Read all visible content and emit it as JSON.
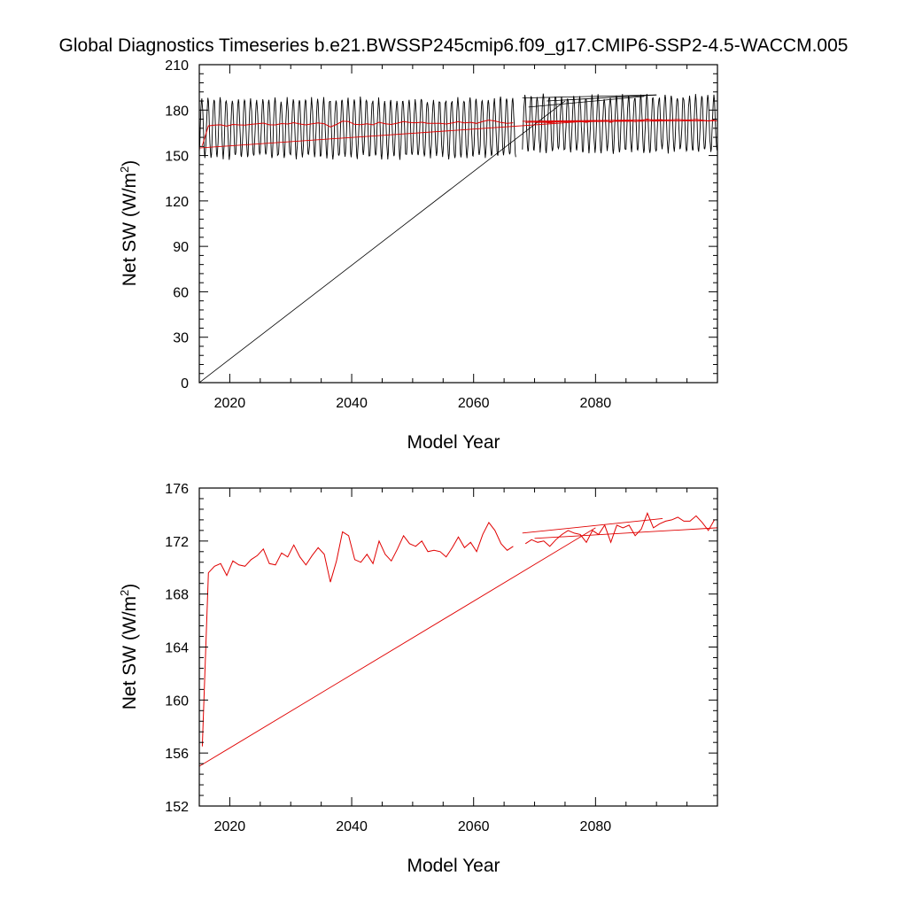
{
  "title": "Global Diagnostics Timeseries b.e21.BWSSP245cmip6.f09_g17.CMIP6-SSP2-4.5-WACCM.005",
  "colors": {
    "monthly": "#000000",
    "annual": "#e00000",
    "axis": "#000000",
    "background": "#ffffff"
  },
  "chart_data": [
    {
      "type": "line",
      "panel": "top",
      "xlabel": "Model Year",
      "ylabel_main": "Net SW (W/m",
      "ylabel_sup": "2",
      "ylabel_tail": ")",
      "xlim": [
        2015,
        2100
      ],
      "ylim": [
        0,
        210
      ],
      "xticks": [
        2020,
        2040,
        2060,
        2080
      ],
      "yticks": [
        0,
        30,
        60,
        90,
        120,
        150,
        180,
        210
      ],
      "grid": false,
      "series": [
        {
          "kind": "monthly",
          "color": "#000000",
          "segments": [
            {
              "years": [
                2015,
                2067
              ],
              "low": 149,
              "high": 187
            },
            {
              "years": [
                2068,
                2100
              ],
              "low": 153,
              "high": 189
            }
          ],
          "connectors": [
            {
              "from": [
                2015,
                0
              ],
              "to": [
                2075,
                186
              ]
            },
            {
              "from": [
                2068,
                188
              ],
              "to": [
                2090,
                190
              ]
            },
            {
              "from": [
                2069,
                182
              ],
              "to": [
                2088,
                189
              ]
            },
            {
              "from": [
                2072,
                186
              ],
              "to": [
                2090,
                190
              ]
            }
          ]
        },
        {
          "kind": "annual",
          "color": "#e00000",
          "segment1": {
            "x": [
              2015.5,
              2016.5,
              2017.5,
              2018.5,
              2019.5,
              2020.5,
              2021.5,
              2022.5,
              2023.5,
              2024.5,
              2025.5,
              2026.5,
              2027.5,
              2028.5,
              2029.5,
              2030.5,
              2031.5,
              2032.5,
              2033.5,
              2034.5,
              2035.5,
              2036.5,
              2037.5,
              2038.5,
              2039.5,
              2040.5,
              2041.5,
              2042.5,
              2043.5,
              2044.5,
              2045.5,
              2046.5,
              2047.5,
              2048.5,
              2049.5,
              2050.5,
              2051.5,
              2052.5,
              2053.5,
              2054.5,
              2055.5,
              2056.5,
              2057.5,
              2058.5,
              2059.5,
              2060.5,
              2061.5,
              2062.5,
              2063.5,
              2064.5,
              2065.5,
              2066.5
            ],
            "y": [
              156.5,
              169.6,
              170.1,
              170.3,
              169.4,
              170.5,
              170.2,
              170.1,
              170.6,
              170.9,
              171.4,
              170.3,
              170.2,
              171.1,
              170.8,
              171.7,
              170.8,
              170.2,
              170.9,
              171.5,
              171.0,
              168.9,
              170.5,
              172.7,
              172.4,
              170.6,
              170.4,
              171.0,
              170.3,
              172.0,
              171.0,
              170.5,
              171.4,
              172.4,
              171.8,
              171.6,
              172.0,
              171.2,
              171.3,
              171.2,
              170.8,
              171.5,
              172.3,
              171.5,
              171.9,
              171.2,
              172.5,
              173.4,
              172.8,
              171.8,
              171.3,
              171.6
            ]
          },
          "segment2": {
            "x": [
              2068.5,
              2069.5,
              2070.5,
              2071.5,
              2072.5,
              2073.5,
              2074.5,
              2075.5,
              2076.5,
              2077.5,
              2078.5,
              2079.5,
              2080.5,
              2081.5,
              2082.5,
              2083.5,
              2084.5,
              2085.5,
              2086.5,
              2087.5,
              2088.5,
              2089.5,
              2090.5,
              2091.5,
              2092.5,
              2093.5,
              2094.5,
              2095.5,
              2096.5,
              2097.5,
              2098.5,
              2099.5
            ],
            "y": [
              171.8,
              172.1,
              171.9,
              172.0,
              171.6,
              172.1,
              172.5,
              172.8,
              172.6,
              172.5,
              171.9,
              172.8,
              172.5,
              173.2,
              171.9,
              173.2,
              173.0,
              173.2,
              172.4,
              172.9,
              174.1,
              173.0,
              173.3,
              173.5,
              173.6,
              173.8,
              173.5,
              173.5,
              173.9,
              173.4,
              172.8,
              173.6
            ]
          },
          "connectors": [
            {
              "from": [
                2015,
                155
              ],
              "to": [
                2080,
                173
              ]
            },
            {
              "from": [
                2068,
                172.6
              ],
              "to": [
                2091,
                173.7
              ]
            },
            {
              "from": [
                2070,
                172.2
              ],
              "to": [
                2100,
                173.0
              ]
            }
          ]
        }
      ]
    },
    {
      "type": "line",
      "panel": "bottom",
      "xlabel": "Model Year",
      "ylabel_main": "Net SW (W/m",
      "ylabel_sup": "2",
      "ylabel_tail": ")",
      "xlim": [
        2015,
        2100
      ],
      "ylim": [
        152,
        176
      ],
      "xticks": [
        2020,
        2040,
        2060,
        2080
      ],
      "yticks": [
        152,
        156,
        160,
        164,
        168,
        172,
        176
      ],
      "grid": false,
      "series": [
        {
          "kind": "annual",
          "color": "#e00000",
          "same_as_top_annual": true
        }
      ]
    }
  ]
}
